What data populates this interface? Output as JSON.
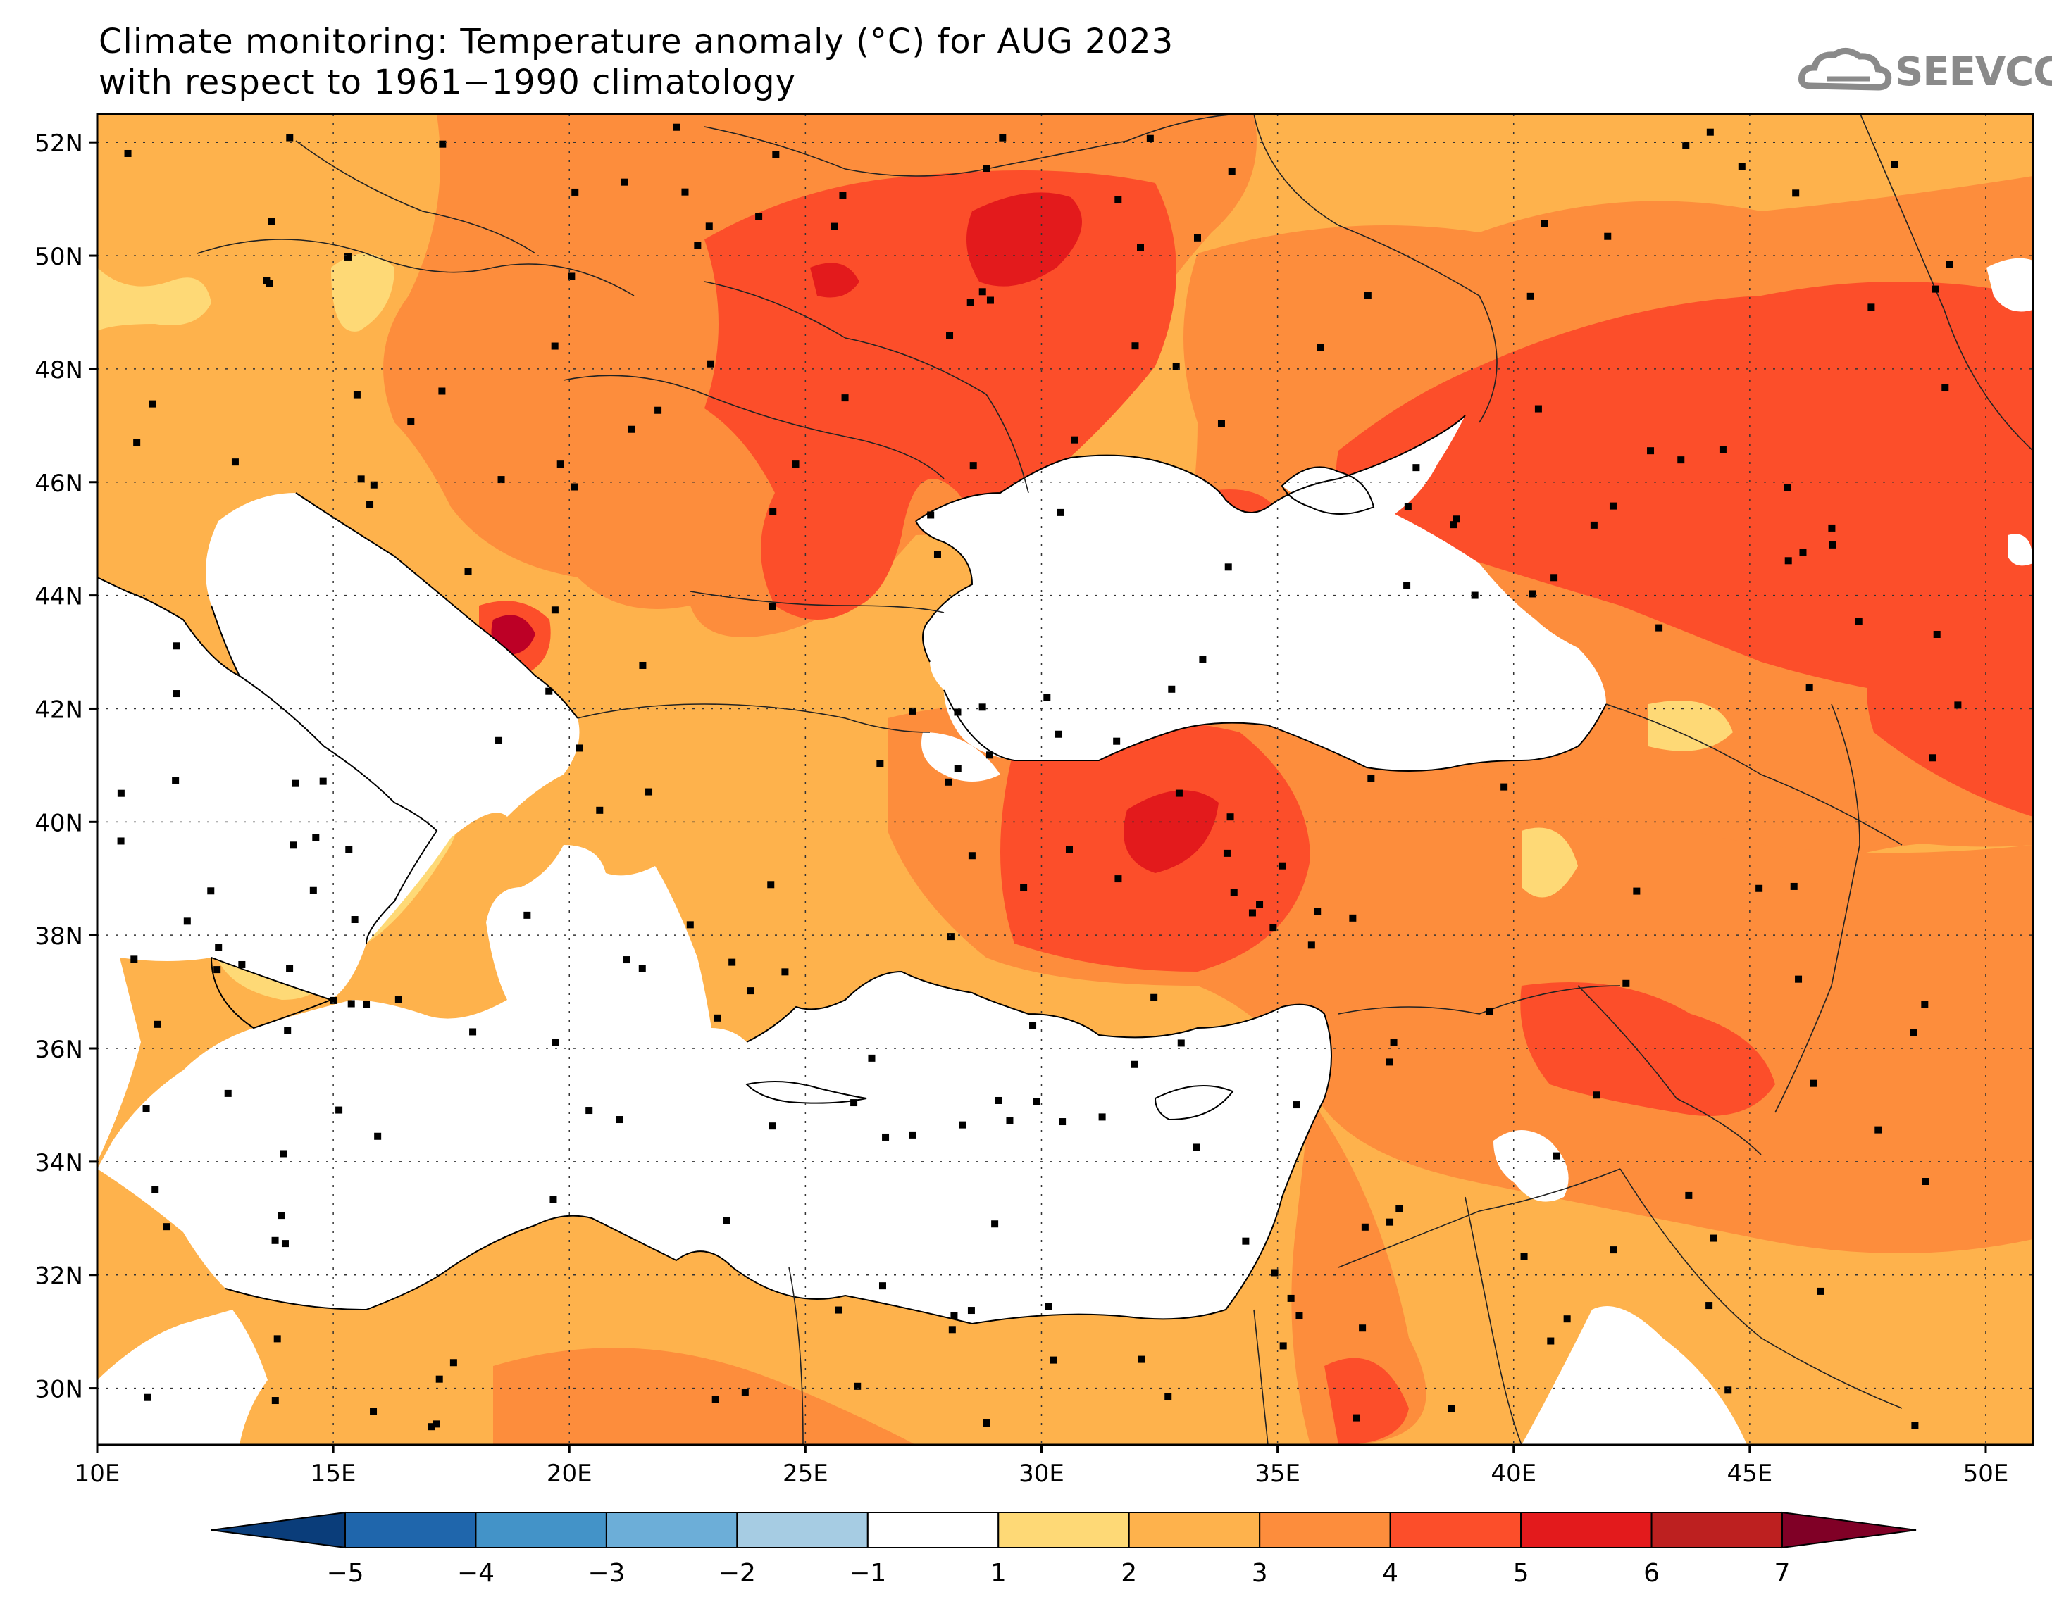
{
  "header": {
    "title_line1": "Climate monitoring: Temperature anomaly (°C) for AUG 2023",
    "title_line2": "with respect to 1961−1990 climatology",
    "logo_text": "SEEVCCC"
  },
  "map": {
    "lon_range": [
      10,
      51
    ],
    "lat_range": [
      29,
      52.5
    ],
    "lat_ticks": [
      {
        "value": 52,
        "label": "52N"
      },
      {
        "value": 50,
        "label": "50N"
      },
      {
        "value": 48,
        "label": "48N"
      },
      {
        "value": 46,
        "label": "46N"
      },
      {
        "value": 44,
        "label": "44N"
      },
      {
        "value": 42,
        "label": "42N"
      },
      {
        "value": 40,
        "label": "40N"
      },
      {
        "value": 38,
        "label": "38N"
      },
      {
        "value": 36,
        "label": "36N"
      },
      {
        "value": 34,
        "label": "34N"
      },
      {
        "value": 32,
        "label": "32N"
      },
      {
        "value": 30,
        "label": "30N"
      }
    ],
    "lon_ticks": [
      {
        "value": 10,
        "label": "10E"
      },
      {
        "value": 15,
        "label": "15E"
      },
      {
        "value": 20,
        "label": "20E"
      },
      {
        "value": 25,
        "label": "25E"
      },
      {
        "value": 30,
        "label": "30E"
      },
      {
        "value": 35,
        "label": "35E"
      },
      {
        "value": 40,
        "label": "40E"
      },
      {
        "value": 45,
        "label": "45E"
      },
      {
        "value": 50,
        "label": "50E"
      }
    ],
    "colors": {
      "ocean": "#ffffff",
      "anomaly_1_2": "#fed976",
      "anomaly_2_3": "#feb24c",
      "anomaly_3_4": "#fd8d3c",
      "anomaly_4_5": "#fc4e2a",
      "anomaly_5_6": "#e31a1c",
      "anomaly_6_7": "#bd0026"
    }
  },
  "colorbar": {
    "labels": [
      "−5",
      "−4",
      "−3",
      "−2",
      "−1",
      "1",
      "2",
      "3",
      "4",
      "5",
      "6",
      "7"
    ],
    "colors": [
      "#0a3d7a",
      "#1f66ac",
      "#4393c8",
      "#6caed8",
      "#a6cce3",
      "#ffffff",
      "#fed976",
      "#feb24c",
      "#fd8d3c",
      "#fc4e2a",
      "#e31a1c",
      "#bd2020",
      "#800026"
    ]
  }
}
